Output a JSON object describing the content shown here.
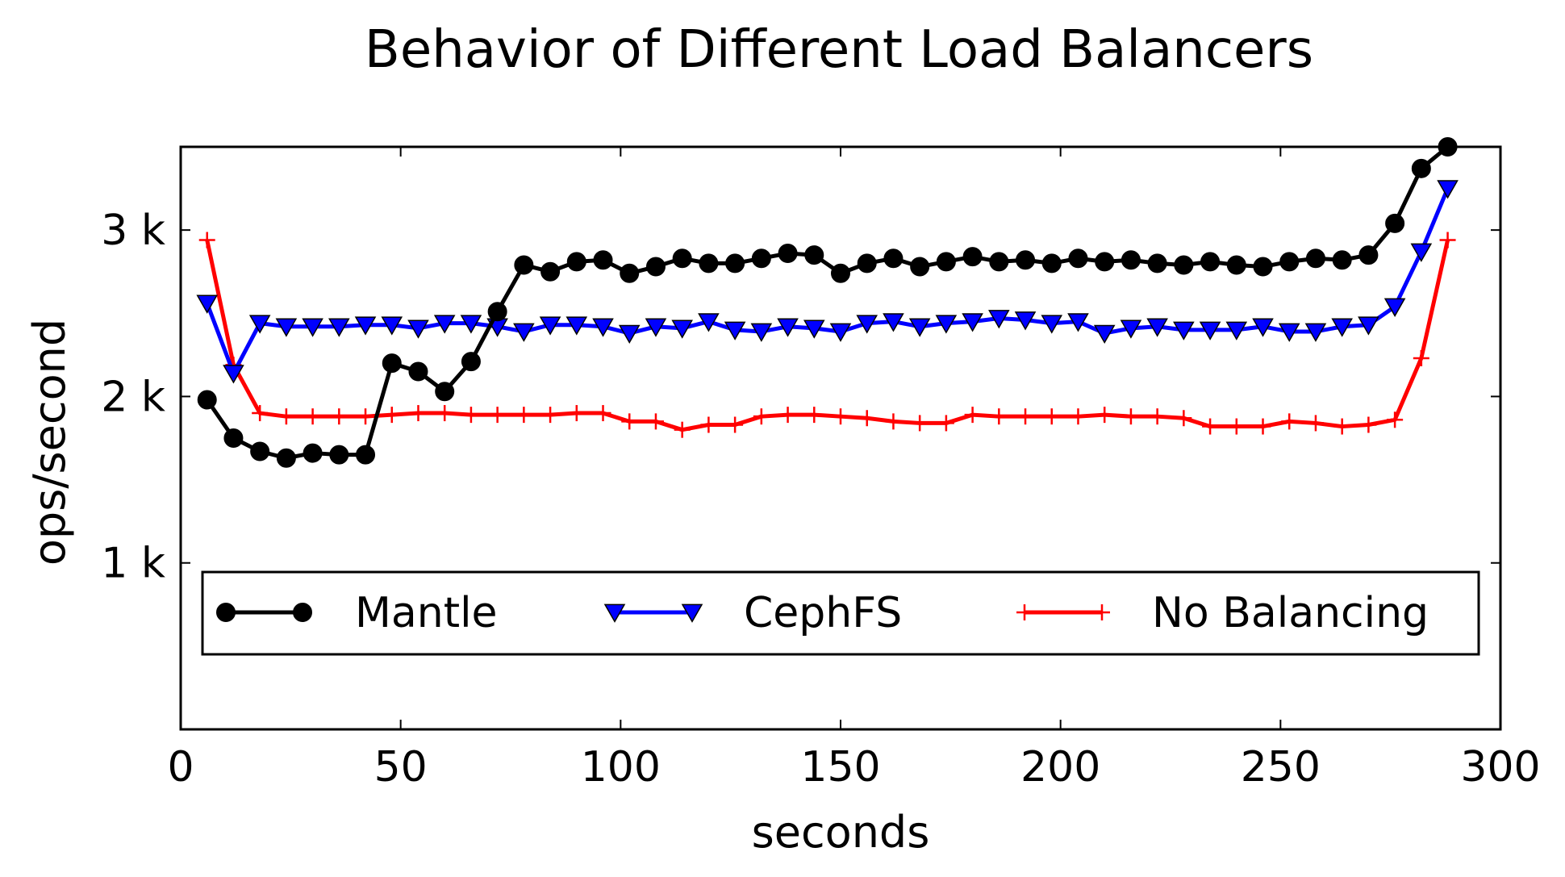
{
  "chart_data": {
    "type": "line",
    "title": "Behavior of Different Load Balancers",
    "xlabel": "seconds",
    "ylabel": "ops/second",
    "xlim": [
      0,
      300
    ],
    "ylim": [
      0,
      3500
    ],
    "xticks": [
      0,
      50,
      100,
      150,
      200,
      250,
      300
    ],
    "xtick_labels": [
      "0",
      "50",
      "100",
      "150",
      "200",
      "250",
      "300"
    ],
    "yticks": [
      1000,
      2000,
      3000
    ],
    "ytick_labels": [
      "1 k",
      "2 k",
      "3 k"
    ],
    "grid": false,
    "legend_position": "lower-center",
    "x": [
      6,
      12,
      18,
      24,
      30,
      36,
      42,
      48,
      54,
      60,
      66,
      72,
      78,
      84,
      90,
      96,
      102,
      108,
      114,
      120,
      126,
      132,
      138,
      144,
      150,
      156,
      162,
      168,
      174,
      180,
      186,
      192,
      198,
      204,
      210,
      216,
      222,
      228,
      234,
      240,
      246,
      252,
      258,
      264,
      270,
      276,
      282,
      288
    ],
    "series": [
      {
        "name": "Mantle",
        "color": "#000000",
        "marker": "circle",
        "values": [
          1980,
          1750,
          1670,
          1630,
          1660,
          1650,
          1650,
          2200,
          2150,
          2030,
          2210,
          2510,
          2790,
          2750,
          2810,
          2820,
          2740,
          2780,
          2830,
          2800,
          2800,
          2830,
          2860,
          2850,
          2740,
          2800,
          2830,
          2780,
          2810,
          2840,
          2810,
          2820,
          2800,
          2830,
          2810,
          2820,
          2800,
          2790,
          2810,
          2790,
          2780,
          2810,
          2830,
          2820,
          2850,
          3040,
          3370,
          3500
        ]
      },
      {
        "name": "CephFS",
        "color": "#0000ff",
        "marker": "triangle-down",
        "values": [
          2560,
          2140,
          2440,
          2420,
          2420,
          2420,
          2430,
          2430,
          2410,
          2440,
          2440,
          2420,
          2390,
          2430,
          2430,
          2420,
          2380,
          2420,
          2410,
          2450,
          2400,
          2390,
          2420,
          2410,
          2390,
          2440,
          2450,
          2420,
          2440,
          2450,
          2470,
          2460,
          2440,
          2450,
          2380,
          2410,
          2420,
          2400,
          2400,
          2400,
          2420,
          2390,
          2390,
          2420,
          2430,
          2540,
          2870,
          3250
        ]
      },
      {
        "name": "No Balancing",
        "color": "#ff0000",
        "marker": "plus",
        "values": [
          2940,
          2190,
          1900,
          1880,
          1880,
          1880,
          1880,
          1890,
          1900,
          1900,
          1890,
          1890,
          1890,
          1890,
          1900,
          1900,
          1850,
          1850,
          1800,
          1830,
          1830,
          1880,
          1890,
          1890,
          1880,
          1870,
          1850,
          1840,
          1840,
          1890,
          1880,
          1880,
          1880,
          1880,
          1890,
          1880,
          1880,
          1870,
          1820,
          1820,
          1820,
          1850,
          1840,
          1820,
          1830,
          1860,
          2230,
          2940
        ]
      }
    ]
  }
}
